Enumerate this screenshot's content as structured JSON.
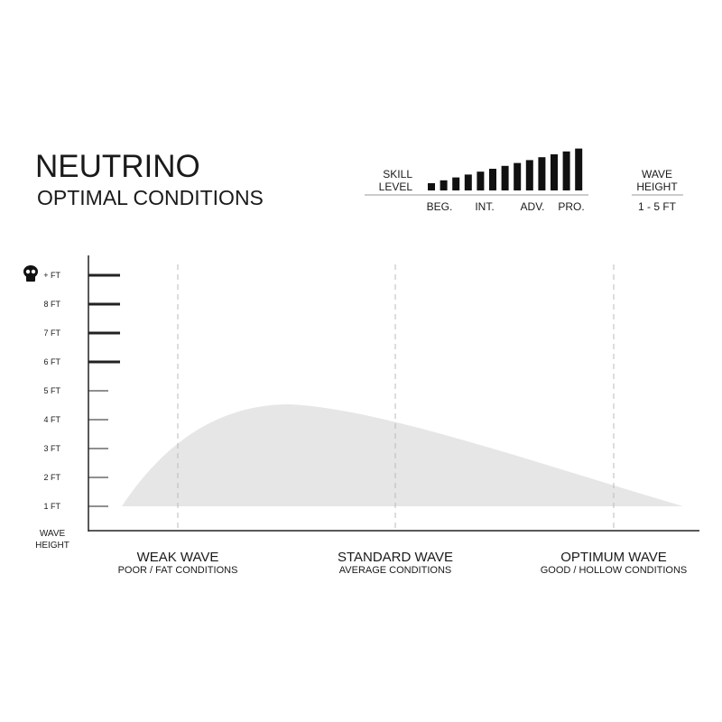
{
  "header": {
    "title": "NEUTRINO",
    "subtitle": "OPTIMAL CONDITIONS"
  },
  "skill_level": {
    "label_lines": [
      "SKILL",
      "LEVEL"
    ],
    "levels": [
      "BEG.",
      "INT.",
      "ADV.",
      "PRO."
    ]
  },
  "wave_height": {
    "label_lines": [
      "WAVE",
      "HEIGHT"
    ],
    "range": "1 - 5 FT"
  },
  "y_axis": {
    "ticks": [
      "+ FT",
      "8 FT",
      "7 FT",
      "6 FT",
      "5 FT",
      "4 FT",
      "3 FT",
      "2 FT",
      "1 FT"
    ],
    "title_lines": [
      "WAVE",
      "HEIGHT"
    ]
  },
  "conditions": [
    {
      "name": "WEAK WAVE",
      "description": "POOR / FAT CONDITIONS"
    },
    {
      "name": "STANDARD WAVE",
      "description": "AVERAGE CONDITIONS"
    },
    {
      "name": "OPTIMUM WAVE",
      "description": "GOOD / HOLLOW CONDITIONS"
    }
  ]
}
